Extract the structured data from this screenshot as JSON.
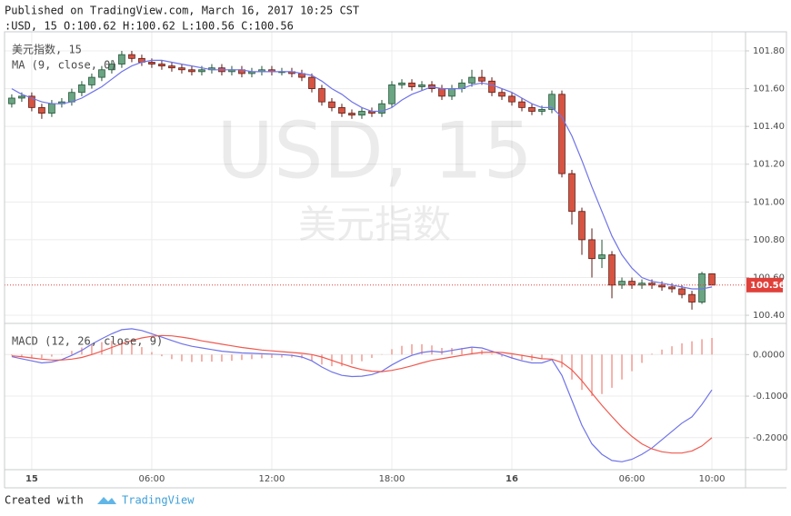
{
  "header": {
    "published": "Published on TradingView.com, March 16, 2017 10:25 CST",
    "ohlc": ":USD, 15 O:100.62 H:100.62 L:100.56 C:100.56"
  },
  "watermark": {
    "symbol": "USD, 15",
    "name": "美元指数"
  },
  "footer": {
    "text": "Created with",
    "brand": "TradingView"
  },
  "chart_data": [
    {
      "type": "candlestick",
      "title": "美元指数, 15",
      "x": [
        -1,
        -0.5,
        0,
        0.5,
        1,
        1.5,
        2,
        2.5,
        3,
        3.5,
        4,
        4.5,
        5,
        5.5,
        6,
        6.5,
        7,
        7.5,
        8,
        8.5,
        9,
        9.5,
        10,
        10.5,
        11,
        11.5,
        12,
        12.5,
        13,
        13.5,
        14,
        14.5,
        15,
        15.5,
        16,
        16.5,
        17,
        17.5,
        18,
        18.5,
        19,
        19.5,
        20,
        20.5,
        21,
        21.5,
        22,
        22.5,
        23,
        23.5,
        24,
        24.5,
        25,
        25.5,
        26,
        26.5,
        27,
        27.5,
        28,
        28.5,
        29,
        29.5,
        30,
        30.5,
        31,
        31.5,
        32,
        32.5,
        33,
        33.5,
        34
      ],
      "xlim": [
        -1.36,
        35.68
      ],
      "xticks": [
        {
          "value": 0,
          "label": "15"
        },
        {
          "value": 6,
          "label": "06:00"
        },
        {
          "value": 12,
          "label": "12:00"
        },
        {
          "value": 18,
          "label": "18:00"
        },
        {
          "value": 24,
          "label": "16"
        },
        {
          "value": 30,
          "label": "06:00"
        },
        {
          "value": 34,
          "label": "10:00"
        }
      ],
      "ylim": [
        100.357,
        101.901
      ],
      "yticks": [
        {
          "value": 100.4,
          "label": "100.40"
        },
        {
          "value": 100.6,
          "label": "100.60"
        },
        {
          "value": 100.8,
          "label": "100.80"
        },
        {
          "value": 101.0,
          "label": "101.00"
        },
        {
          "value": 101.2,
          "label": "101.20"
        },
        {
          "value": 101.4,
          "label": "101.40"
        },
        {
          "value": 101.6,
          "label": "101.60"
        },
        {
          "value": 101.8,
          "label": "101.80"
        }
      ],
      "grid": true,
      "series": [
        {
          "type": "candlestick",
          "up_color": "#6ba583",
          "down_color": "#d75442",
          "last_price_color": "#e0403a",
          "open": [
            101.52,
            101.55,
            101.56,
            101.5,
            101.47,
            101.52,
            101.53,
            101.58,
            101.62,
            101.66,
            101.7,
            101.73,
            101.78,
            101.76,
            101.74,
            101.73,
            101.72,
            101.71,
            101.7,
            101.69,
            101.7,
            101.71,
            101.69,
            101.7,
            101.68,
            101.69,
            101.7,
            101.69,
            101.69,
            101.68,
            101.66,
            101.6,
            101.53,
            101.5,
            101.47,
            101.46,
            101.48,
            101.47,
            101.52,
            101.62,
            101.63,
            101.61,
            101.62,
            101.6,
            101.56,
            101.6,
            101.63,
            101.66,
            101.64,
            101.58,
            101.56,
            101.53,
            101.5,
            101.48,
            101.49,
            101.57,
            101.15,
            100.95,
            100.8,
            100.7,
            100.72,
            100.56,
            100.58,
            100.56,
            100.57,
            100.56,
            100.55,
            100.54,
            100.51,
            100.47,
            100.62
          ],
          "high": [
            101.57,
            101.58,
            101.58,
            101.52,
            101.54,
            101.55,
            101.6,
            101.64,
            101.68,
            101.72,
            101.75,
            101.8,
            101.8,
            101.78,
            101.76,
            101.75,
            101.74,
            101.73,
            101.72,
            101.72,
            101.73,
            101.73,
            101.72,
            101.72,
            101.71,
            101.72,
            101.72,
            101.71,
            101.71,
            101.7,
            101.68,
            101.62,
            101.55,
            101.52,
            101.49,
            101.5,
            101.5,
            101.54,
            101.64,
            101.65,
            101.65,
            101.64,
            101.64,
            101.62,
            101.62,
            101.65,
            101.7,
            101.7,
            101.66,
            101.6,
            101.58,
            101.55,
            101.52,
            101.51,
            101.59,
            101.59,
            101.17,
            100.97,
            100.86,
            100.8,
            100.74,
            100.6,
            100.6,
            100.59,
            100.59,
            100.58,
            100.57,
            100.56,
            100.53,
            100.63,
            100.62
          ],
          "low": [
            101.5,
            101.53,
            101.48,
            101.44,
            101.45,
            101.5,
            101.51,
            101.56,
            101.6,
            101.64,
            101.68,
            101.71,
            101.74,
            101.72,
            101.71,
            101.7,
            101.69,
            101.68,
            101.67,
            101.67,
            101.68,
            101.67,
            101.67,
            101.66,
            101.66,
            101.67,
            101.67,
            101.67,
            101.66,
            101.64,
            101.58,
            101.51,
            101.48,
            101.45,
            101.44,
            101.44,
            101.45,
            101.45,
            101.5,
            101.6,
            101.59,
            101.59,
            101.58,
            101.54,
            101.54,
            101.58,
            101.61,
            101.62,
            101.56,
            101.54,
            101.51,
            101.48,
            101.46,
            101.46,
            101.47,
            101.13,
            100.88,
            100.72,
            100.6,
            100.65,
            100.49,
            100.54,
            100.54,
            100.54,
            100.54,
            100.53,
            100.52,
            100.49,
            100.43,
            100.46,
            100.56
          ],
          "close": [
            101.55,
            101.56,
            101.5,
            101.47,
            101.52,
            101.53,
            101.58,
            101.62,
            101.66,
            101.7,
            101.73,
            101.78,
            101.76,
            101.74,
            101.73,
            101.72,
            101.71,
            101.7,
            101.69,
            101.7,
            101.71,
            101.69,
            101.7,
            101.68,
            101.69,
            101.7,
            101.69,
            101.69,
            101.68,
            101.66,
            101.6,
            101.53,
            101.5,
            101.47,
            101.46,
            101.48,
            101.47,
            101.52,
            101.62,
            101.63,
            101.61,
            101.62,
            101.6,
            101.56,
            101.6,
            101.63,
            101.66,
            101.64,
            101.58,
            101.56,
            101.53,
            101.5,
            101.48,
            101.49,
            101.57,
            101.15,
            100.95,
            100.8,
            100.7,
            100.72,
            100.56,
            100.58,
            100.56,
            100.57,
            100.56,
            100.55,
            100.54,
            100.51,
            100.47,
            100.62,
            100.56
          ]
        },
        {
          "type": "line",
          "name": "MA (9, close, 0)",
          "color": "#6f73e8",
          "values": [
            101.6,
            101.57,
            101.55,
            101.53,
            101.52,
            101.52,
            101.53,
            101.55,
            101.58,
            101.61,
            101.65,
            101.69,
            101.72,
            101.74,
            101.75,
            101.75,
            101.74,
            101.73,
            101.72,
            101.71,
            101.7,
            101.7,
            101.7,
            101.7,
            101.69,
            101.69,
            101.69,
            101.69,
            101.69,
            101.68,
            101.67,
            101.64,
            101.6,
            101.57,
            101.53,
            101.5,
            101.48,
            101.48,
            101.5,
            101.54,
            101.57,
            101.59,
            101.61,
            101.6,
            101.6,
            101.6,
            101.62,
            101.63,
            101.62,
            101.6,
            101.58,
            101.55,
            101.52,
            101.5,
            101.5,
            101.45,
            101.35,
            101.22,
            101.08,
            100.95,
            100.82,
            100.72,
            100.65,
            100.6,
            100.58,
            100.57,
            100.56,
            100.55,
            100.54,
            100.54,
            100.55
          ]
        }
      ]
    },
    {
      "type": "line",
      "title": "MACD (12, 26, close, 9)",
      "ylim": [
        -0.277,
        0.075
      ],
      "yticks": [
        {
          "value": 0,
          "label": "0.0000"
        },
        {
          "value": -0.1,
          "label": "-0.1000"
        },
        {
          "value": -0.2,
          "label": "-0.2000"
        }
      ],
      "grid": true,
      "series": [
        {
          "type": "histogram",
          "color": "#f08a80",
          "values": [
            -0.002,
            -0.005,
            -0.007,
            -0.009,
            -0.005,
            0.001,
            0.009,
            0.017,
            0.025,
            0.03,
            0.033,
            0.034,
            0.028,
            0.018,
            0.006,
            -0.004,
            -0.011,
            -0.016,
            -0.018,
            -0.017,
            -0.017,
            -0.017,
            -0.015,
            -0.013,
            -0.011,
            -0.009,
            -0.008,
            -0.007,
            -0.007,
            -0.009,
            -0.015,
            -0.024,
            -0.028,
            -0.028,
            -0.023,
            -0.016,
            -0.008,
            0.001,
            0.013,
            0.021,
            0.025,
            0.025,
            0.022,
            0.016,
            0.016,
            0.016,
            0.016,
            0.011,
            0.002,
            -0.005,
            -0.01,
            -0.013,
            -0.014,
            -0.01,
            -0.001,
            -0.031,
            -0.06,
            -0.085,
            -0.1,
            -0.095,
            -0.08,
            -0.06,
            -0.04,
            -0.02,
            0.002,
            0.012,
            0.02,
            0.027,
            0.032,
            0.037,
            0.04
          ]
        },
        {
          "type": "line",
          "color": "#6f73e8",
          "values": [
            -0.005,
            -0.01,
            -0.015,
            -0.02,
            -0.018,
            -0.012,
            -0.002,
            0.01,
            0.025,
            0.038,
            0.05,
            0.06,
            0.062,
            0.058,
            0.05,
            0.042,
            0.034,
            0.026,
            0.02,
            0.016,
            0.012,
            0.008,
            0.006,
            0.004,
            0.003,
            0.002,
            0.001,
            0.0,
            -0.002,
            -0.006,
            -0.015,
            -0.03,
            -0.042,
            -0.05,
            -0.053,
            -0.052,
            -0.048,
            -0.04,
            -0.025,
            -0.012,
            -0.002,
            0.005,
            0.008,
            0.006,
            0.01,
            0.014,
            0.018,
            0.016,
            0.008,
            0.0,
            -0.008,
            -0.015,
            -0.02,
            -0.02,
            -0.012,
            -0.05,
            -0.11,
            -0.17,
            -0.215,
            -0.24,
            -0.255,
            -0.258,
            -0.252,
            -0.24,
            -0.225,
            -0.205,
            -0.185,
            -0.165,
            -0.15,
            -0.12,
            -0.085
          ]
        },
        {
          "type": "line",
          "color": "#f0594f",
          "values": [
            -0.003,
            -0.005,
            -0.008,
            -0.011,
            -0.013,
            -0.013,
            -0.011,
            -0.007,
            0.0,
            0.008,
            0.017,
            0.026,
            0.034,
            0.04,
            0.044,
            0.046,
            0.045,
            0.042,
            0.038,
            0.033,
            0.029,
            0.025,
            0.021,
            0.017,
            0.014,
            0.011,
            0.009,
            0.007,
            0.005,
            0.003,
            0.0,
            -0.006,
            -0.014,
            -0.022,
            -0.03,
            -0.036,
            -0.04,
            -0.041,
            -0.038,
            -0.033,
            -0.027,
            -0.02,
            -0.014,
            -0.01,
            -0.006,
            -0.002,
            0.002,
            0.005,
            0.006,
            0.005,
            0.002,
            -0.002,
            -0.006,
            -0.01,
            -0.011,
            -0.019,
            -0.037,
            -0.063,
            -0.093,
            -0.122,
            -0.149,
            -0.175,
            -0.197,
            -0.215,
            -0.227,
            -0.234,
            -0.237,
            -0.237,
            -0.232,
            -0.22,
            -0.2
          ]
        }
      ]
    }
  ]
}
